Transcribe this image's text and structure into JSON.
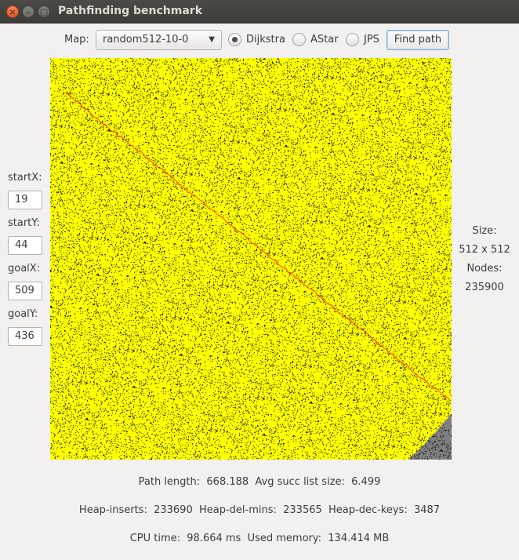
{
  "window": {
    "title": "Pathfinding benchmark",
    "close_glyph": "×",
    "minimize_glyph": "–",
    "maximize_glyph": "□"
  },
  "toolbar": {
    "map_label": "Map:",
    "map_selected": "random512-10-0",
    "algorithms": [
      {
        "label": "Dijkstra",
        "selected": true
      },
      {
        "label": "AStar",
        "selected": false
      },
      {
        "label": "JPS",
        "selected": false
      }
    ],
    "find_button": "Find path"
  },
  "params": {
    "startX_label": "startX:",
    "startX": "19",
    "startY_label": "startY:",
    "startY": "44",
    "goalX_label": "goalX:",
    "goalX": "509",
    "goalY_label": "goalY:",
    "goalY": "436"
  },
  "info": {
    "size_label": "Size:",
    "size_value": "512 x 512",
    "nodes_label": "Nodes:",
    "nodes_value": "235900"
  },
  "stats": {
    "line1": "Path length:  668.188  Avg succ list size:  6.499",
    "line2": "Heap-inserts:  233690  Heap-del-mins:  233565  Heap-dec-keys:  3487",
    "line3": "CPU time:  98.664 ms  Used memory:  134.414 MB"
  },
  "map_view": {
    "grid_size": 512,
    "start": [
      19,
      44
    ],
    "goal": [
      509,
      436
    ],
    "colors": {
      "free": "#ffff00",
      "obstacle": "#000000",
      "unvisited": "#808080",
      "path": "#ff0000"
    }
  }
}
